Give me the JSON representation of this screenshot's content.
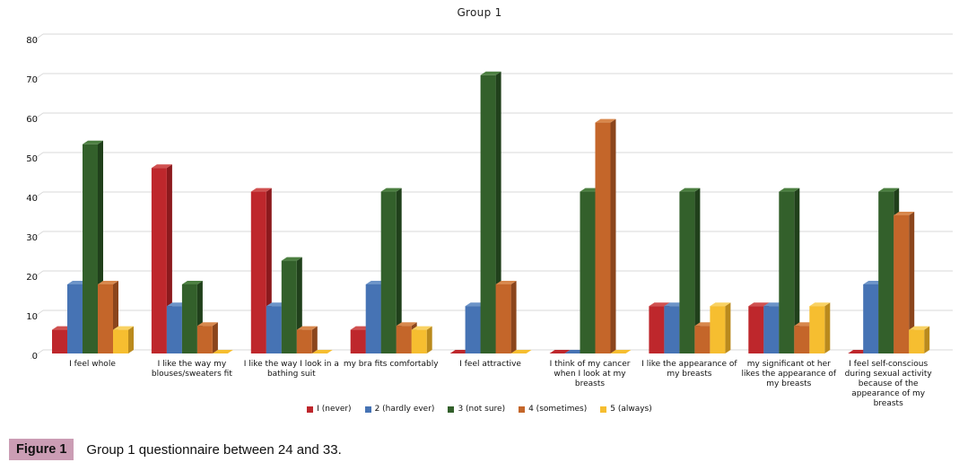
{
  "chart": {
    "title": "Group 1"
  },
  "caption": {
    "label": "Figure 1",
    "text": "Group 1 questionnaire between 24 and 33."
  },
  "colors": {
    "gridline": "#D9D9D9",
    "caption_highlight": "#CB9DB4",
    "text": "#111111"
  },
  "chart_data": {
    "type": "bar",
    "title": "Group 1",
    "xlabel": "",
    "ylabel": "",
    "ylim": [
      0,
      80
    ],
    "yticks": [
      0,
      10,
      20,
      30,
      40,
      50,
      60,
      70,
      80
    ],
    "grid": true,
    "style": "3d-clustered-column",
    "legend_position": "bottom",
    "categories": [
      "I feel whole",
      "I like the way my blouses/sweaters fit",
      "I like the way I look in a bathing suit",
      "my bra fits comfortably",
      "I feel attractive",
      "I think of my cancer when I look at my breasts",
      "I like the appearance of my breasts",
      "my significant ot her likes the appearance of my breasts",
      "I feel self-conscious during sexual activity because of the appearance of my breasts"
    ],
    "series": [
      {
        "name": "I (never)",
        "color": "#BE272C",
        "side": "#8C191D",
        "top": "#D05150",
        "values": [
          6,
          47,
          41,
          6,
          0.5,
          0.5,
          12,
          12,
          0.5
        ]
      },
      {
        "name": "2 (hardly ever)",
        "color": "#4673B4",
        "side": "#2F5181",
        "top": "#6C94C8",
        "values": [
          17.5,
          12,
          12,
          17.5,
          12,
          0.5,
          12,
          12,
          17.5
        ]
      },
      {
        "name": "3 (not sure)",
        "color": "#33602B",
        "side": "#20401B",
        "top": "#4C7F41",
        "values": [
          53,
          17.5,
          23.5,
          41,
          70.5,
          41,
          41,
          41,
          41
        ]
      },
      {
        "name": "4 (sometimes)",
        "color": "#C4662A",
        "side": "#8B451C",
        "top": "#D8884D",
        "values": [
          17.5,
          7,
          6,
          7,
          17.5,
          58.5,
          7,
          7,
          35
        ]
      },
      {
        "name": "5 (always)",
        "color": "#F6BE30",
        "side": "#BA8A1D",
        "top": "#F9D263",
        "values": [
          6,
          0.5,
          0.5,
          6,
          0.5,
          0.5,
          12,
          12,
          6
        ]
      }
    ]
  }
}
